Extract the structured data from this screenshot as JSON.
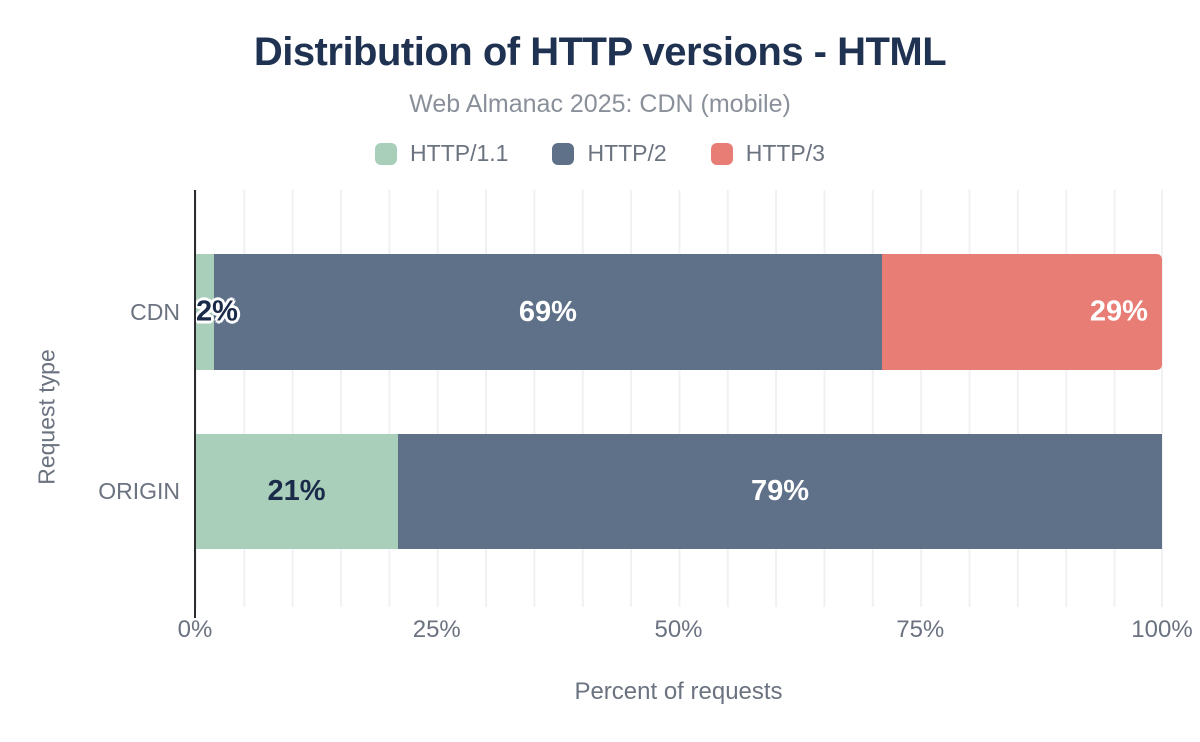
{
  "header": {
    "title": "Distribution of HTTP versions - HTML",
    "subtitle": "Web Almanac 2025: CDN (mobile)"
  },
  "chart_data": {
    "type": "bar",
    "orientation": "horizontal",
    "stacked": true,
    "title": "Distribution of HTTP versions - HTML",
    "subtitle": "Web Almanac 2025: CDN (mobile)",
    "categories": [
      "CDN",
      "ORIGIN"
    ],
    "series": [
      {
        "name": "HTTP/1.1",
        "color": "#a9ceb9",
        "values": [
          2,
          21
        ],
        "label_color": "#1a2b49",
        "label_align": "center",
        "rounded_right": false
      },
      {
        "name": "HTTP/2",
        "color": "#5f7089",
        "values": [
          69,
          79
        ],
        "label_color": "#ffffff",
        "label_align": "center",
        "rounded_right": false
      },
      {
        "name": "HTTP/3",
        "color": "#e77d75",
        "values": [
          29,
          0
        ],
        "label_color": "#ffffff",
        "label_align": "right",
        "rounded_right": true
      }
    ],
    "value_suffix": "%",
    "xlabel": "Percent of requests",
    "ylabel": "Request type",
    "xlim": [
      0,
      100
    ],
    "x_tick_labels": [
      "0%",
      "25%",
      "50%",
      "75%",
      "100%"
    ],
    "grid": {
      "vertical": true,
      "minor_interval_pct": 5
    },
    "legend_position": "top"
  },
  "colors": {
    "title_text": "#1f3251",
    "muted_text": "#6b7280",
    "subtitle_text": "#8a909a",
    "axis_line": "#2a2c30",
    "gridline": "#f1f1f3",
    "background": "#ffffff"
  }
}
